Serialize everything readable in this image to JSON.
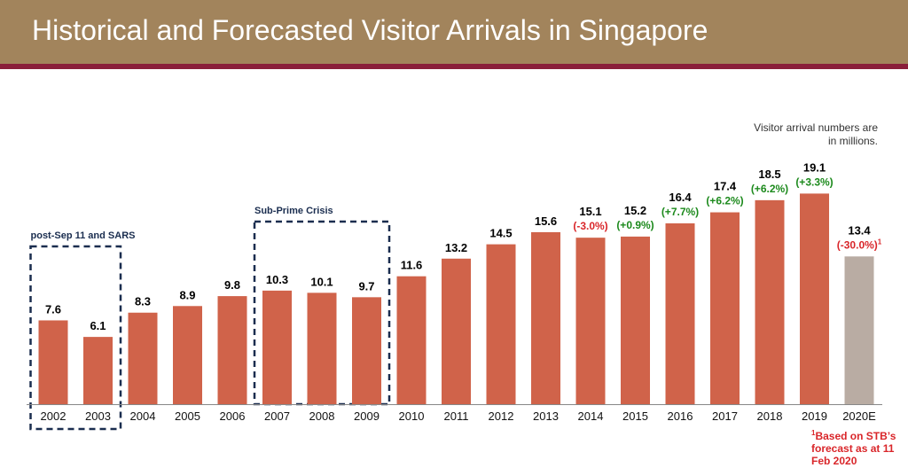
{
  "header": {
    "title": "Historical and Forecasted Visitor Arrivals in Singapore"
  },
  "note": {
    "line1": "Visitor arrival numbers are",
    "line2": "in millions."
  },
  "footnote": {
    "marker": "1",
    "text": "Based on STB’s forecast as at 11 Feb 2020"
  },
  "colors": {
    "bar": "#d0634a",
    "forecast_bar": "#b9aca3",
    "increase": "#1d8a1d",
    "decrease": "#d9262a",
    "box": "#1a2d4f",
    "header": "#a2845c",
    "stripe": "#8a1f3b"
  },
  "chart_data": {
    "type": "bar",
    "title": "Historical and Forecasted Visitor Arrivals in Singapore",
    "xlabel": "",
    "ylabel": "",
    "ylim": [
      0,
      20
    ],
    "grid": false,
    "categories": [
      "2002",
      "2003",
      "2004",
      "2005",
      "2006",
      "2007",
      "2008",
      "2009",
      "2010",
      "2011",
      "2012",
      "2013",
      "2014",
      "2015",
      "2016",
      "2017",
      "2018",
      "2019",
      "2020E"
    ],
    "values": [
      7.6,
      6.1,
      8.3,
      8.9,
      9.8,
      10.3,
      10.1,
      9.7,
      11.6,
      13.2,
      14.5,
      15.6,
      15.1,
      15.2,
      16.4,
      17.4,
      18.5,
      19.1,
      13.4
    ],
    "value_labels": [
      "7.6",
      "6.1",
      "8.3",
      "8.9",
      "9.8",
      "10.3",
      "10.1",
      "9.7",
      "11.6",
      "13.2",
      "14.5",
      "15.6",
      "15.1",
      "15.2",
      "16.4",
      "17.4",
      "18.5",
      "19.1",
      "13.4"
    ],
    "change_labels": [
      null,
      null,
      null,
      null,
      null,
      null,
      null,
      null,
      null,
      null,
      null,
      null,
      "(-3.0%)",
      "(+0.9%)",
      "(+7.7%)",
      "(+6.2%)",
      "(+6.2%)",
      "(+3.3%)",
      "(-30.0%)"
    ],
    "change_superscripts": [
      null,
      null,
      null,
      null,
      null,
      null,
      null,
      null,
      null,
      null,
      null,
      null,
      null,
      null,
      null,
      null,
      null,
      null,
      "1"
    ],
    "forecast_index": 18,
    "annotations": [
      {
        "label": "post-Sep 11 and SARS",
        "from": 0,
        "to": 1
      },
      {
        "label": "Sub-Prime Crisis",
        "from": 5,
        "to": 7
      }
    ]
  }
}
